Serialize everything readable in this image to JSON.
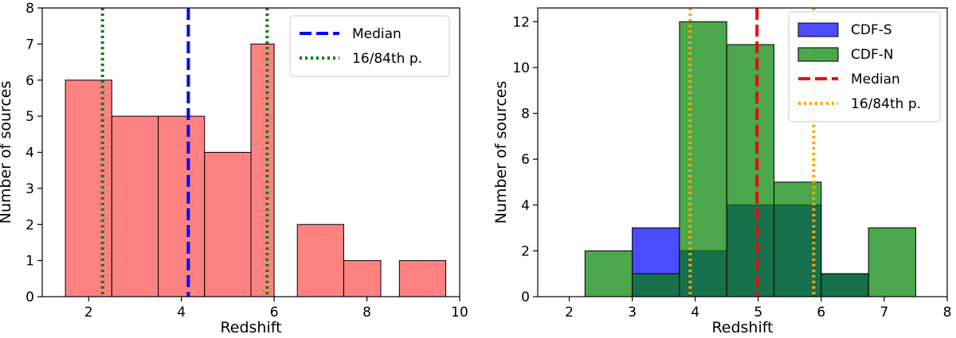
{
  "chart_data": [
    {
      "type": "bar",
      "panel": "left",
      "xlabel": "Redshift",
      "ylabel": "Number of sources",
      "xlim": [
        1.0,
        10.0
      ],
      "ylim": [
        0,
        8
      ],
      "xticks": [
        2,
        4,
        6,
        8,
        10
      ],
      "yticks": [
        0,
        1,
        2,
        3,
        4,
        5,
        6,
        7,
        8
      ],
      "grid": false,
      "legend_position": "top-right",
      "series": [
        {
          "color": "#ff4d4d",
          "bins": [
            {
              "x0": 1.5,
              "x1": 2.5,
              "count": 6
            },
            {
              "x0": 2.5,
              "x1": 3.5,
              "count": 5
            },
            {
              "x0": 3.5,
              "x1": 4.5,
              "count": 5
            },
            {
              "x0": 4.5,
              "x1": 5.5,
              "count": 4
            },
            {
              "x0": 5.5,
              "x1": 6.0,
              "count": 7
            },
            {
              "x0": 6.5,
              "x1": 7.5,
              "count": 2
            },
            {
              "x0": 7.5,
              "x1": 8.3,
              "count": 1
            },
            {
              "x0": 8.7,
              "x1": 9.7,
              "count": 1
            }
          ]
        }
      ],
      "lines": [
        {
          "name": "Median",
          "x": [
            4.15
          ],
          "color": "#0000ff",
          "style": "dashed"
        },
        {
          "name": "16/84th p.",
          "x": [
            2.3,
            5.85
          ],
          "color": "#008000",
          "style": "dotted"
        }
      ]
    },
    {
      "type": "bar",
      "panel": "right",
      "xlabel": "Redshift",
      "ylabel": "Number of sources",
      "xlim": [
        1.5,
        8.0
      ],
      "ylim": [
        0,
        12.6
      ],
      "xticks": [
        2,
        3,
        4,
        5,
        6,
        7,
        8
      ],
      "yticks": [
        0,
        2,
        4,
        6,
        8,
        10,
        12
      ],
      "grid": false,
      "legend_position": "top-right",
      "series": [
        {
          "name": "CDF-S",
          "color": "#0000ff",
          "opacity": 0.7,
          "bins": [
            {
              "x0": 3.0,
              "x1": 3.75,
              "count": 3
            },
            {
              "x0": 3.75,
              "x1": 4.5,
              "count": 2
            },
            {
              "x0": 4.5,
              "x1": 5.25,
              "count": 4
            },
            {
              "x0": 5.25,
              "x1": 6.0,
              "count": 4
            },
            {
              "x0": 6.0,
              "x1": 6.75,
              "count": 1
            }
          ]
        },
        {
          "name": "CDF-N",
          "color": "#008000",
          "opacity": 0.7,
          "bins": [
            {
              "x0": 2.25,
              "x1": 3.0,
              "count": 2
            },
            {
              "x0": 3.0,
              "x1": 3.75,
              "count": 1
            },
            {
              "x0": 3.75,
              "x1": 4.5,
              "count": 12
            },
            {
              "x0": 4.5,
              "x1": 5.25,
              "count": 11
            },
            {
              "x0": 5.25,
              "x1": 6.0,
              "count": 5
            },
            {
              "x0": 6.0,
              "x1": 6.75,
              "count": 1
            },
            {
              "x0": 6.75,
              "x1": 7.5,
              "count": 3
            }
          ]
        }
      ],
      "lines": [
        {
          "name": "Median",
          "x": [
            4.98
          ],
          "color": "#ff0000",
          "style": "dashed"
        },
        {
          "name": "16/84th p.",
          "x": [
            3.92,
            5.88
          ],
          "color": "#ffa500",
          "style": "dotted"
        }
      ]
    }
  ]
}
